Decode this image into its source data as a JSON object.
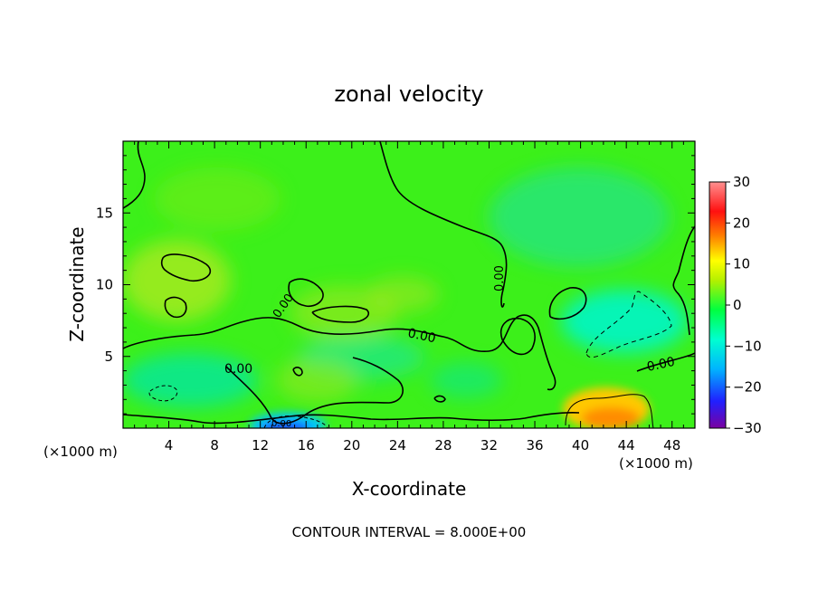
{
  "chart_data": {
    "type": "heatmap",
    "title": "zonal velocity",
    "xlabel": "X-coordinate",
    "ylabel": "Z-coordinate",
    "x_unit": "(×1000 m)",
    "x_unit_right": "(×1000 m)",
    "xlim": [
      0,
      50
    ],
    "ylim": [
      0,
      20
    ],
    "x_ticks": [
      "4",
      "8",
      "12",
      "16",
      "20",
      "24",
      "28",
      "32",
      "36",
      "40",
      "44",
      "48"
    ],
    "y_ticks": [
      "5",
      "10",
      "15"
    ],
    "colorbar": {
      "range": [
        -30,
        30
      ],
      "ticks": [
        "30",
        "20",
        "10",
        "0",
        "−10",
        "−20",
        "−30"
      ],
      "colors": [
        "#7a00a0",
        "#2020ff",
        "#00b4ff",
        "#00ffd0",
        "#00ff40",
        "#b4f000",
        "#ffff00",
        "#ff8000",
        "#ff1010",
        "#ff9090"
      ]
    },
    "contour_labels": [
      "0.00",
      "0.00",
      "0.00",
      "0.00",
      "0.00",
      "0.00"
    ],
    "footnote": "CONTOUR INTERVAL = 8.000E+00"
  }
}
